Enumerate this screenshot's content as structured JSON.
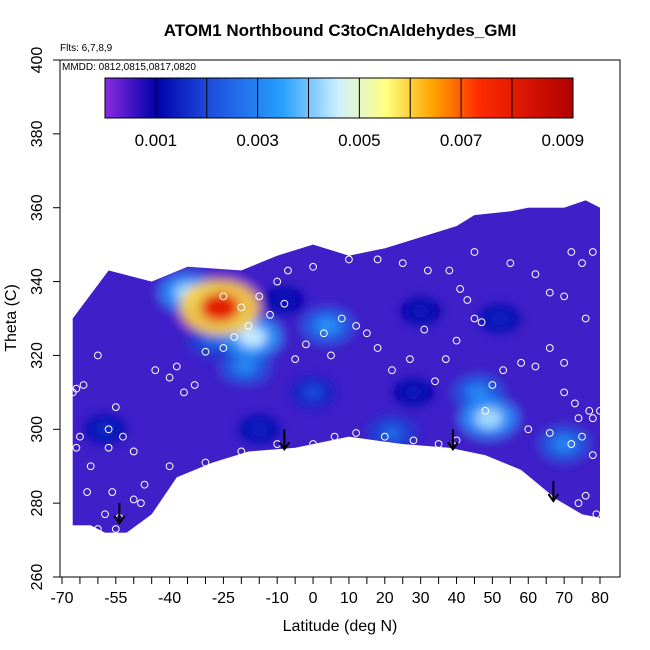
{
  "chart_data": {
    "type": "heatmap",
    "title": "ATOM1 Northbound C3toCnAldehydes_GMI",
    "flights_note": "Flts: 6,7,8,9",
    "dates_note": "MMDD: 0812,0815,0817,0820",
    "xlabel": "Latitude (deg N)",
    "ylabel": "Theta (C)",
    "xlim": [
      -70,
      80
    ],
    "ylim": [
      260,
      400
    ],
    "x_ticks": [
      -70,
      -55,
      -40,
      -25,
      -10,
      0,
      10,
      20,
      30,
      40,
      50,
      60,
      70,
      80
    ],
    "x_minor_ticks": [
      -65,
      -60,
      -50,
      -45,
      -35,
      -30,
      -20,
      -15,
      -5,
      5,
      15,
      25,
      35,
      45,
      55,
      65,
      75
    ],
    "y_ticks": [
      260,
      280,
      300,
      320,
      340,
      360,
      380,
      400
    ],
    "colorbar": {
      "min": 0.0,
      "max": 0.0092,
      "tick_values": [
        0.001,
        0.003,
        0.005,
        0.007,
        0.009
      ],
      "tick_labels": [
        "0.001",
        "0.003",
        "0.005",
        "0.007",
        "0.009"
      ],
      "colors": [
        "#8a2be2",
        "#0000aa",
        "#1e4bdc",
        "#28a0ff",
        "#d0f0ff",
        "#ffff80",
        "#ffa500",
        "#ff2a00",
        "#b00000"
      ],
      "color_stops": [
        0.0,
        0.11,
        0.22,
        0.38,
        0.5,
        0.6,
        0.7,
        0.8,
        1.0
      ]
    },
    "upper_boundary": [
      [
        -67,
        330
      ],
      [
        -57,
        343
      ],
      [
        -45,
        340
      ],
      [
        -35,
        344
      ],
      [
        -20,
        343
      ],
      [
        -10,
        347
      ],
      [
        0,
        350
      ],
      [
        10,
        347
      ],
      [
        20,
        349
      ],
      [
        30,
        352
      ],
      [
        40,
        355
      ],
      [
        45,
        358
      ],
      [
        55,
        359
      ],
      [
        60,
        360
      ],
      [
        70,
        360
      ],
      [
        76,
        362
      ],
      [
        80,
        360
      ]
    ],
    "lower_boundary": [
      [
        -67,
        274
      ],
      [
        -62,
        274
      ],
      [
        -58,
        272
      ],
      [
        -52,
        272
      ],
      [
        -45,
        277
      ],
      [
        -38,
        287
      ],
      [
        -28,
        291
      ],
      [
        -18,
        294
      ],
      [
        -5,
        295
      ],
      [
        10,
        298
      ],
      [
        25,
        296
      ],
      [
        38,
        295
      ],
      [
        48,
        293
      ],
      [
        58,
        289
      ],
      [
        68,
        281
      ],
      [
        75,
        277
      ],
      [
        80,
        276
      ]
    ],
    "hotspots": [
      {
        "lat": -26,
        "theta": 333,
        "value": 0.008
      },
      {
        "lat": -35,
        "theta": 337,
        "value": 0.0042
      },
      {
        "lat": -17,
        "theta": 325,
        "value": 0.0045
      },
      {
        "lat": -19,
        "theta": 317,
        "value": 0.003
      },
      {
        "lat": -28,
        "theta": 324,
        "value": 0.0025
      },
      {
        "lat": 4,
        "theta": 328,
        "value": 0.0032
      },
      {
        "lat": 0,
        "theta": 310,
        "value": 0.002
      },
      {
        "lat": 49,
        "theta": 303,
        "value": 0.0043
      },
      {
        "lat": 46,
        "theta": 310,
        "value": 0.003
      },
      {
        "lat": 22,
        "theta": 299,
        "value": 0.0025
      },
      {
        "lat": 28,
        "theta": 310,
        "value": 0.0014
      },
      {
        "lat": 52,
        "theta": 330,
        "value": 0.0015
      },
      {
        "lat": -58,
        "theta": 300,
        "value": 0.0016
      },
      {
        "lat": -15,
        "theta": 300,
        "value": 0.0015
      },
      {
        "lat": 30,
        "theta": 332,
        "value": 0.0014
      },
      {
        "lat": 70,
        "theta": 296,
        "value": 0.003
      },
      {
        "lat": -8,
        "theta": 335,
        "value": 0.0013
      }
    ],
    "sample_points": [
      [
        -67,
        310
      ],
      [
        -66,
        311
      ],
      [
        -64,
        312
      ],
      [
        -60,
        320
      ],
      [
        -57,
        300
      ],
      [
        -55,
        306
      ],
      [
        -53,
        298
      ],
      [
        -50,
        294
      ],
      [
        -44,
        316
      ],
      [
        -40,
        314
      ],
      [
        -38,
        317
      ],
      [
        -36,
        310
      ],
      [
        -33,
        312
      ],
      [
        -30,
        321
      ],
      [
        -25,
        322
      ],
      [
        -22,
        325
      ],
      [
        -18,
        328
      ],
      [
        -12,
        331
      ],
      [
        -8,
        334
      ],
      [
        -5,
        319
      ],
      [
        -2,
        323
      ],
      [
        3,
        326
      ],
      [
        5,
        320
      ],
      [
        8,
        330
      ],
      [
        12,
        328
      ],
      [
        15,
        326
      ],
      [
        18,
        322
      ],
      [
        22,
        316
      ],
      [
        27,
        319
      ],
      [
        31,
        327
      ],
      [
        34,
        313
      ],
      [
        37,
        319
      ],
      [
        40,
        324
      ],
      [
        43,
        335
      ],
      [
        47,
        329
      ],
      [
        50,
        312
      ],
      [
        53,
        316
      ],
      [
        58,
        318
      ],
      [
        62,
        317
      ],
      [
        66,
        322
      ],
      [
        70,
        318
      ],
      [
        -40,
        290
      ],
      [
        -30,
        291
      ],
      [
        -20,
        294
      ],
      [
        -10,
        296
      ],
      [
        0,
        296
      ],
      [
        6,
        298
      ],
      [
        12,
        299
      ],
      [
        20,
        298
      ],
      [
        28,
        297
      ],
      [
        35,
        296
      ],
      [
        40,
        297
      ],
      [
        48,
        305
      ],
      [
        60,
        300
      ],
      [
        66,
        299
      ],
      [
        -63,
        283
      ],
      [
        -62,
        290
      ],
      [
        -56,
        283
      ],
      [
        -58,
        277
      ],
      [
        -54,
        276
      ],
      [
        -48,
        280
      ],
      [
        -47,
        285
      ],
      [
        -60,
        273
      ],
      [
        -62,
        272
      ],
      [
        -55,
        273
      ],
      [
        -50,
        281
      ],
      [
        -57,
        295
      ],
      [
        -65,
        298
      ],
      [
        -66,
        295
      ],
      [
        -25,
        336
      ],
      [
        -20,
        333
      ],
      [
        -15,
        336
      ],
      [
        -10,
        340
      ],
      [
        -7,
        343
      ],
      [
        0,
        344
      ],
      [
        10,
        346
      ],
      [
        18,
        346
      ],
      [
        25,
        345
      ],
      [
        32,
        343
      ],
      [
        38,
        343
      ],
      [
        45,
        348
      ],
      [
        41,
        338
      ],
      [
        45,
        330
      ],
      [
        55,
        345
      ],
      [
        62,
        342
      ],
      [
        66,
        337
      ],
      [
        70,
        336
      ],
      [
        72,
        348
      ],
      [
        75,
        345
      ],
      [
        78,
        348
      ],
      [
        76,
        330
      ],
      [
        70,
        310
      ],
      [
        73,
        307
      ],
      [
        74,
        303
      ],
      [
        77,
        305
      ],
      [
        78,
        303
      ],
      [
        80,
        305
      ],
      [
        75,
        298
      ],
      [
        72,
        296
      ],
      [
        78,
        293
      ],
      [
        76,
        282
      ],
      [
        74,
        280
      ],
      [
        79,
        277
      ]
    ],
    "arrows": [
      [
        -54,
        280
      ],
      [
        -8,
        300
      ],
      [
        39,
        300
      ],
      [
        67,
        286
      ]
    ]
  }
}
